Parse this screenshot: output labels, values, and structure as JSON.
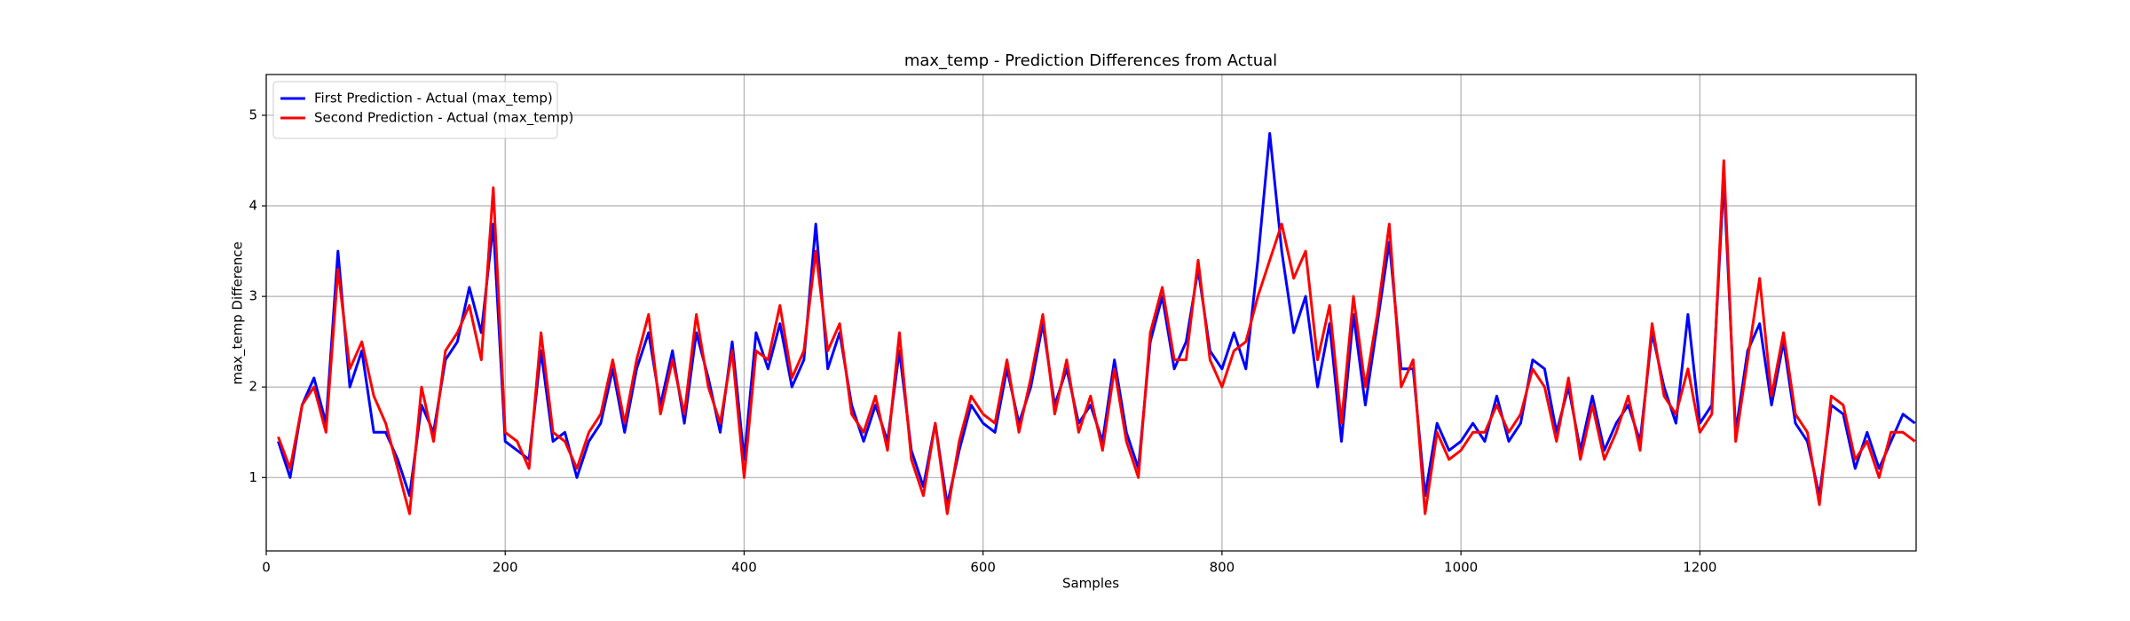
{
  "chart_data": {
    "type": "line",
    "title": "max_temp - Prediction Differences from Actual",
    "x_label": "Samples",
    "y_label": "max_temp Difference",
    "x": [
      10,
      20,
      30,
      40,
      50,
      60,
      70,
      80,
      90,
      100,
      110,
      120,
      130,
      140,
      150,
      160,
      170,
      180,
      190,
      200,
      210,
      220,
      230,
      240,
      250,
      260,
      270,
      280,
      290,
      300,
      310,
      320,
      330,
      340,
      350,
      360,
      370,
      380,
      390,
      400,
      410,
      420,
      430,
      440,
      450,
      460,
      470,
      480,
      490,
      500,
      510,
      520,
      530,
      540,
      550,
      560,
      570,
      580,
      590,
      600,
      610,
      620,
      630,
      640,
      650,
      660,
      670,
      680,
      690,
      700,
      710,
      720,
      730,
      740,
      750,
      760,
      770,
      780,
      790,
      800,
      810,
      820,
      830,
      840,
      850,
      860,
      870,
      880,
      890,
      900,
      910,
      920,
      930,
      940,
      950,
      960,
      970,
      980,
      990,
      1000,
      1010,
      1020,
      1030,
      1040,
      1050,
      1060,
      1070,
      1080,
      1090,
      1100,
      1110,
      1120,
      1130,
      1140,
      1150,
      1160,
      1170,
      1180,
      1190,
      1200,
      1210,
      1220,
      1230,
      1240,
      1250,
      1260,
      1270,
      1280,
      1290,
      1300,
      1310,
      1320,
      1330,
      1340,
      1350,
      1360,
      1370,
      1380
    ],
    "series": [
      {
        "name": "First Prediction - Actual (max_temp)",
        "color": "#0000ff",
        "values": [
          1.4,
          1.0,
          1.8,
          2.1,
          1.6,
          3.5,
          2.0,
          2.4,
          1.5,
          1.5,
          1.2,
          0.8,
          1.8,
          1.5,
          2.3,
          2.5,
          3.1,
          2.6,
          3.8,
          1.4,
          1.3,
          1.2,
          2.4,
          1.4,
          1.5,
          1.0,
          1.4,
          1.6,
          2.2,
          1.5,
          2.2,
          2.6,
          1.8,
          2.4,
          1.6,
          2.6,
          2.1,
          1.5,
          2.5,
          1.2,
          2.6,
          2.2,
          2.7,
          2.0,
          2.3,
          3.8,
          2.2,
          2.6,
          1.8,
          1.4,
          1.8,
          1.4,
          2.4,
          1.3,
          0.9,
          1.6,
          0.7,
          1.3,
          1.8,
          1.6,
          1.5,
          2.2,
          1.6,
          2.0,
          2.7,
          1.8,
          2.2,
          1.6,
          1.8,
          1.4,
          2.3,
          1.5,
          1.1,
          2.5,
          3.0,
          2.2,
          2.5,
          3.3,
          2.4,
          2.2,
          2.6,
          2.2,
          3.4,
          4.8,
          3.5,
          2.6,
          3.0,
          2.0,
          2.7,
          1.4,
          2.8,
          1.8,
          2.7,
          3.6,
          2.2,
          2.2,
          0.8,
          1.6,
          1.3,
          1.4,
          1.6,
          1.4,
          1.9,
          1.4,
          1.6,
          2.3,
          2.2,
          1.5,
          2.0,
          1.3,
          1.9,
          1.3,
          1.6,
          1.8,
          1.4,
          2.6,
          2.0,
          1.6,
          2.8,
          1.6,
          1.8,
          4.3,
          1.5,
          2.4,
          2.7,
          1.8,
          2.5,
          1.6,
          1.4,
          0.8,
          1.8,
          1.7,
          1.1,
          1.5,
          1.1,
          1.4,
          1.7,
          1.6
        ]
      },
      {
        "name": "Second Prediction - Actual (max_temp)",
        "color": "#ff0000",
        "values": [
          1.45,
          1.1,
          1.8,
          2.0,
          1.5,
          3.3,
          2.2,
          2.5,
          1.9,
          1.6,
          1.1,
          0.6,
          2.0,
          1.4,
          2.4,
          2.6,
          2.9,
          2.3,
          4.2,
          1.5,
          1.4,
          1.1,
          2.6,
          1.5,
          1.4,
          1.1,
          1.5,
          1.7,
          2.3,
          1.6,
          2.3,
          2.8,
          1.7,
          2.3,
          1.7,
          2.8,
          2.0,
          1.6,
          2.4,
          1.0,
          2.4,
          2.3,
          2.9,
          2.1,
          2.4,
          3.5,
          2.4,
          2.7,
          1.7,
          1.5,
          1.9,
          1.3,
          2.6,
          1.2,
          0.8,
          1.6,
          0.6,
          1.4,
          1.9,
          1.7,
          1.6,
          2.3,
          1.5,
          2.1,
          2.8,
          1.7,
          2.3,
          1.5,
          1.9,
          1.3,
          2.2,
          1.4,
          1.0,
          2.6,
          3.1,
          2.3,
          2.3,
          3.4,
          2.3,
          2.0,
          2.4,
          2.5,
          3.0,
          3.4,
          3.8,
          3.2,
          3.5,
          2.3,
          2.9,
          1.6,
          3.0,
          2.0,
          2.8,
          3.8,
          2.0,
          2.3,
          0.6,
          1.5,
          1.2,
          1.3,
          1.5,
          1.5,
          1.8,
          1.5,
          1.7,
          2.2,
          2.0,
          1.4,
          2.1,
          1.2,
          1.8,
          1.2,
          1.5,
          1.9,
          1.3,
          2.7,
          1.9,
          1.7,
          2.2,
          1.5,
          1.7,
          4.5,
          1.4,
          2.3,
          3.2,
          1.9,
          2.6,
          1.7,
          1.5,
          0.7,
          1.9,
          1.8,
          1.2,
          1.4,
          1.0,
          1.5,
          1.5,
          1.4
        ]
      }
    ],
    "xlim": [
      0,
      1381
    ],
    "ylim": [
      0.19,
      5.45
    ],
    "xticks": [
      0,
      200,
      400,
      600,
      800,
      1000,
      1200
    ],
    "yticks": [
      1,
      2,
      3,
      4,
      5
    ],
    "grid": true,
    "legend": "upper left"
  }
}
